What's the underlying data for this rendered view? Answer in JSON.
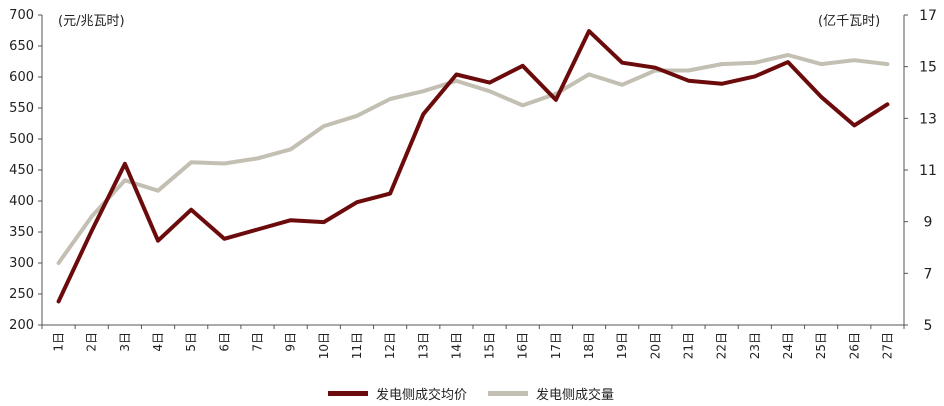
{
  "chart_data": {
    "type": "line",
    "categories": [
      "1日",
      "2日",
      "3日",
      "4日",
      "5日",
      "6日",
      "7日",
      "9日",
      "10日",
      "11日",
      "12日",
      "13日",
      "14日",
      "15日",
      "16日",
      "17日",
      "18日",
      "19日",
      "20日",
      "21日",
      "22日",
      "23日",
      "24日",
      "25日",
      "26日",
      "27日"
    ],
    "y_left": {
      "label": "(元/兆瓦时)",
      "range": [
        200,
        700
      ],
      "ticks": [
        200,
        250,
        300,
        350,
        400,
        450,
        500,
        550,
        600,
        650,
        700
      ]
    },
    "y_right": {
      "label": "(亿千瓦时)",
      "range": [
        5,
        17
      ],
      "ticks": [
        5,
        7,
        9,
        11,
        13,
        15,
        17
      ]
    },
    "series": [
      {
        "name": "发电侧成交均价",
        "axis": "left",
        "color": "#6b0b0b",
        "values": [
          238,
          352,
          460,
          336,
          386,
          339,
          354,
          369,
          366,
          398,
          412,
          540,
          604,
          591,
          618,
          563,
          674,
          623,
          615,
          594,
          589,
          601,
          624,
          568,
          522,
          556
        ]
      },
      {
        "name": "发电侧成交量",
        "axis": "right",
        "color": "#c3bfb3",
        "values": [
          7.4,
          9.2,
          10.6,
          10.2,
          11.3,
          11.25,
          11.45,
          11.8,
          12.7,
          13.1,
          13.75,
          14.05,
          14.45,
          14.05,
          13.5,
          13.95,
          14.7,
          14.3,
          14.85,
          14.85,
          15.1,
          15.15,
          15.45,
          15.1,
          15.25,
          15.1
        ]
      }
    ],
    "grid": false,
    "legend": "bottom"
  }
}
